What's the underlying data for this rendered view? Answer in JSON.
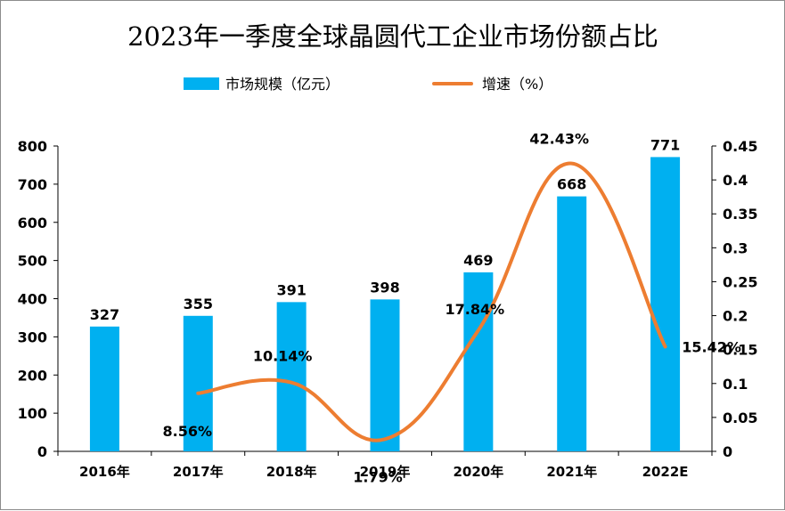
{
  "chart_data": {
    "type": "bar+line",
    "title": "2023年一季度全球晶圆代工企业市场份额占比",
    "categories": [
      "2016年",
      "2017年",
      "2018年",
      "2019年",
      "2020年",
      "2021年",
      "2022E"
    ],
    "series": [
      {
        "name": "市场规模（亿元）",
        "type": "bar",
        "axis": "left",
        "color": "#00b0f0",
        "values": [
          327,
          355,
          391,
          398,
          469,
          668,
          771
        ],
        "labels": [
          "327",
          "355",
          "391",
          "398",
          "469",
          "668",
          "771"
        ]
      },
      {
        "name": "增速（%）",
        "type": "line",
        "axis": "right",
        "color": "#ed7d31",
        "values": [
          null,
          0.0856,
          0.1014,
          0.0179,
          0.1784,
          0.4243,
          0.1542
        ],
        "labels": [
          "",
          "8.56%",
          "10.14%",
          "1.79%",
          "17.84%",
          "42.43%",
          "15.42%"
        ]
      }
    ],
    "y_left": {
      "min": 0,
      "max": 800,
      "ticks": [
        "0",
        "100",
        "200",
        "300",
        "400",
        "500",
        "600",
        "700",
        "800"
      ]
    },
    "y_right": {
      "min": 0,
      "max": 0.45,
      "ticks": [
        "0",
        "0.05",
        "0.1",
        "0.15",
        "0.2",
        "0.25",
        "0.3",
        "0.35",
        "0.4",
        "0.45"
      ]
    },
    "grid": false,
    "legend_position": "top"
  }
}
